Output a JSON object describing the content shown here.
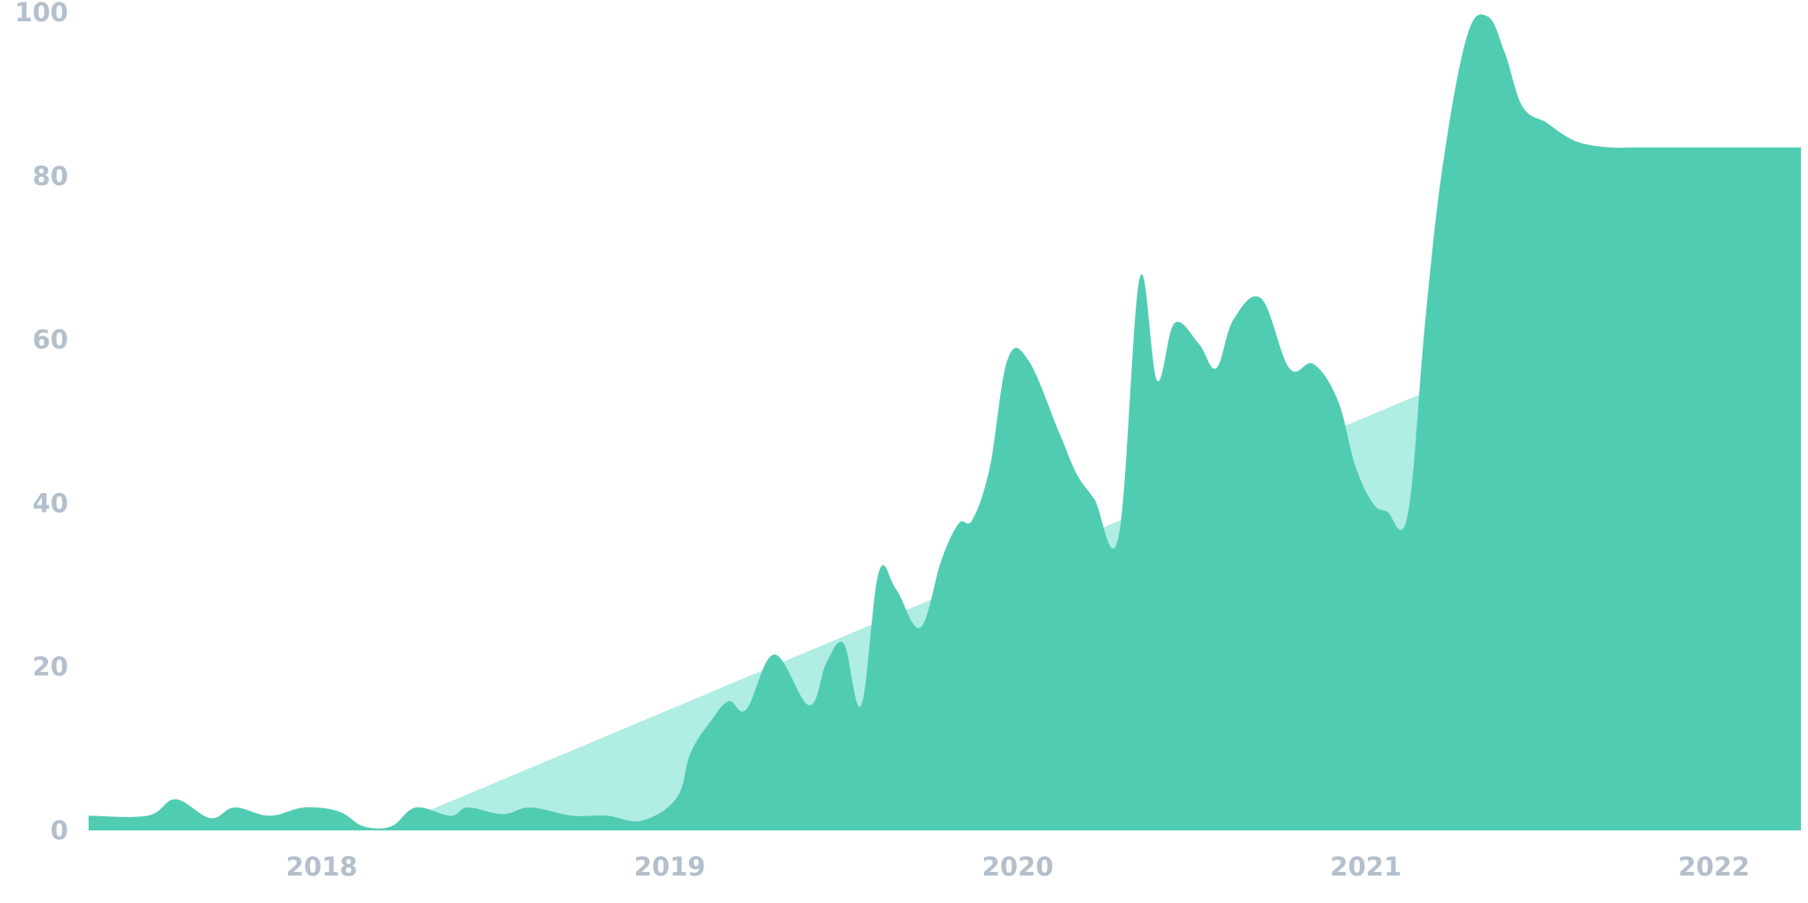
{
  "chart_data": {
    "type": "area",
    "title": "",
    "xlabel": "",
    "ylabel": "",
    "ylim": [
      0,
      100
    ],
    "y_ticks": [
      "0",
      "20",
      "40",
      "60",
      "80",
      "100"
    ],
    "y_tick_values": [
      0,
      20,
      40,
      60,
      80,
      100
    ],
    "x_ticks": [
      "2018",
      "2019",
      "2020",
      "2021",
      "2022"
    ],
    "x_tick_values": [
      2018.0,
      2019.0,
      2020.0,
      2021.0,
      2022.0
    ],
    "grid": false,
    "legend": "none",
    "series": [
      {
        "kind": "trend",
        "color": "#b0ede2",
        "x": [
          2018.2,
          2021.95
        ],
        "values": [
          0.5,
          67.5
        ]
      },
      {
        "kind": "area",
        "color": "#50ccb3",
        "x": [
          2017.33,
          2017.5,
          2017.58,
          2017.68,
          2017.75,
          2017.85,
          2017.95,
          2018.05,
          2018.12,
          2018.2,
          2018.27,
          2018.37,
          2018.42,
          2018.52,
          2018.6,
          2018.72,
          2018.82,
          2018.92,
          2019.02,
          2019.06,
          2019.12,
          2019.17,
          2019.22,
          2019.3,
          2019.4,
          2019.45,
          2019.5,
          2019.55,
          2019.6,
          2019.65,
          2019.72,
          2019.78,
          2019.83,
          2019.87,
          2019.92,
          2019.97,
          2020.03,
          2020.12,
          2020.17,
          2020.22,
          2020.29,
          2020.35,
          2020.4,
          2020.45,
          2020.52,
          2020.57,
          2020.62,
          2020.7,
          2020.78,
          2020.85,
          2020.92,
          2020.97,
          2021.02,
          2021.06,
          2021.12,
          2021.17,
          2021.22,
          2021.29,
          2021.35,
          2021.4,
          2021.45,
          2021.52,
          2021.57,
          2021.62,
          2021.7,
          2021.78,
          2021.86,
          2021.91,
          2021.96,
          2022.02,
          2022.08,
          2022.12,
          2022.17,
          2022.25
        ],
        "values": [
          1.8,
          1.8,
          3.8,
          1.5,
          2.8,
          1.8,
          2.8,
          2.3,
          0.5,
          0.5,
          2.8,
          1.8,
          2.8,
          2.0,
          2.8,
          1.8,
          1.8,
          1.2,
          4.0,
          9.5,
          13.5,
          15.8,
          14.8,
          21.5,
          15.3,
          20.5,
          22.8,
          15.3,
          31.5,
          29.5,
          24.8,
          33.0,
          37.5,
          38.0,
          44.5,
          57.5,
          57.5,
          48.5,
          43.5,
          40.5,
          36.0,
          67.5,
          55.0,
          62.0,
          59.5,
          56.5,
          62.5,
          65.0,
          56.5,
          57.0,
          52.5,
          44.5,
          40.0,
          39.0,
          38.5,
          62.0,
          81.0,
          97.0,
          99.5,
          95.0,
          88.5,
          86.5,
          85.0,
          84.0,
          83.5,
          83.5,
          83.5,
          83.5,
          83.5,
          83.5,
          83.5,
          83.5,
          83.5,
          83.5
        ]
      }
    ]
  }
}
